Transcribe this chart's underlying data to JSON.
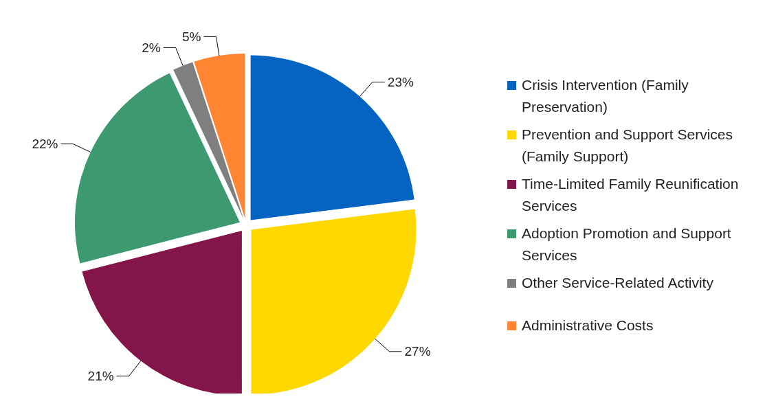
{
  "chart_data": {
    "type": "pie",
    "categories": [
      "Crisis Intervention (Family Preservation)",
      "Prevention and Support Services (Family Support)",
      "Time-Limited Family Reunification Services",
      "Adoption Promotion and Support Services",
      "Other Service-Related Activity",
      "Administrative Costs"
    ],
    "values": [
      23,
      27,
      21,
      22,
      2,
      5
    ],
    "colors": [
      "#0563c1",
      "#ffd800",
      "#84154a",
      "#3d9970",
      "#7f7f7f",
      "#ff8532"
    ],
    "value_labels": [
      "23%",
      "27%",
      "21%",
      "22%",
      "2%",
      "5%"
    ],
    "legend": "right"
  }
}
